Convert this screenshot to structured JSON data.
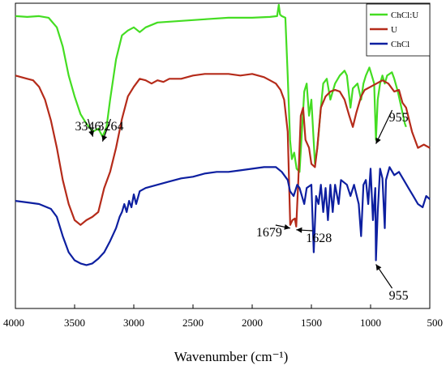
{
  "chart_data": {
    "type": "line",
    "xlabel": "Wavenumber (cm⁻¹)",
    "xlim": [
      4000,
      500
    ],
    "x_ticks": [
      4000,
      3500,
      3000,
      2500,
      2000,
      1500,
      1000,
      500
    ],
    "yticks_shown": false,
    "legend": {
      "position": "top-right",
      "entries": [
        "ChCl:U",
        "U",
        "ChCl"
      ]
    },
    "series": [
      {
        "name": "ChCl:U",
        "color": "#44dd22",
        "offset": 0.8,
        "points": [
          [
            4000,
            0.97
          ],
          [
            3900,
            0.965
          ],
          [
            3800,
            0.97
          ],
          [
            3720,
            0.96
          ],
          [
            3650,
            0.9
          ],
          [
            3600,
            0.78
          ],
          [
            3550,
            0.6
          ],
          [
            3500,
            0.47
          ],
          [
            3450,
            0.36
          ],
          [
            3400,
            0.3
          ],
          [
            3346,
            0.25
          ],
          [
            3300,
            0.27
          ],
          [
            3264,
            0.22
          ],
          [
            3230,
            0.28
          ],
          [
            3200,
            0.45
          ],
          [
            3150,
            0.7
          ],
          [
            3100,
            0.85
          ],
          [
            3050,
            0.88
          ],
          [
            3000,
            0.9
          ],
          [
            2950,
            0.87
          ],
          [
            2900,
            0.9
          ],
          [
            2800,
            0.93
          ],
          [
            2600,
            0.94
          ],
          [
            2400,
            0.95
          ],
          [
            2200,
            0.96
          ],
          [
            2000,
            0.96
          ],
          [
            1850,
            0.965
          ],
          [
            1790,
            0.97
          ],
          [
            1775,
            1.04
          ],
          [
            1765,
            0.98
          ],
          [
            1750,
            0.97
          ],
          [
            1720,
            0.96
          ],
          [
            1700,
            0.6
          ],
          [
            1680,
            0.2
          ],
          [
            1665,
            0.08
          ],
          [
            1645,
            0.12
          ],
          [
            1625,
            0.02
          ],
          [
            1600,
            0.0
          ],
          [
            1580,
            0.25
          ],
          [
            1560,
            0.5
          ],
          [
            1540,
            0.55
          ],
          [
            1520,
            0.35
          ],
          [
            1500,
            0.45
          ],
          [
            1470,
            0.05
          ],
          [
            1450,
            0.15
          ],
          [
            1420,
            0.4
          ],
          [
            1400,
            0.55
          ],
          [
            1370,
            0.58
          ],
          [
            1340,
            0.45
          ],
          [
            1300,
            0.55
          ],
          [
            1260,
            0.6
          ],
          [
            1220,
            0.63
          ],
          [
            1200,
            0.6
          ],
          [
            1170,
            0.4
          ],
          [
            1150,
            0.52
          ],
          [
            1110,
            0.55
          ],
          [
            1080,
            0.45
          ],
          [
            1060,
            0.55
          ],
          [
            1040,
            0.6
          ],
          [
            1010,
            0.65
          ],
          [
            990,
            0.6
          ],
          [
            970,
            0.55
          ],
          [
            955,
            0.2
          ],
          [
            940,
            0.45
          ],
          [
            920,
            0.55
          ],
          [
            900,
            0.6
          ],
          [
            880,
            0.55
          ],
          [
            860,
            0.6
          ],
          [
            820,
            0.62
          ],
          [
            800,
            0.58
          ],
          [
            770,
            0.5
          ],
          [
            740,
            0.4
          ],
          [
            710,
            0.3
          ],
          [
            700,
            0.28
          ]
        ]
      },
      {
        "name": "U",
        "color": "#b52b1a",
        "offset": 0.45,
        "points": [
          [
            4000,
            0.95
          ],
          [
            3900,
            0.93
          ],
          [
            3850,
            0.92
          ],
          [
            3800,
            0.88
          ],
          [
            3750,
            0.8
          ],
          [
            3700,
            0.67
          ],
          [
            3650,
            0.5
          ],
          [
            3600,
            0.3
          ],
          [
            3550,
            0.15
          ],
          [
            3500,
            0.05
          ],
          [
            3450,
            0.02
          ],
          [
            3400,
            0.05
          ],
          [
            3350,
            0.07
          ],
          [
            3300,
            0.1
          ],
          [
            3250,
            0.25
          ],
          [
            3200,
            0.35
          ],
          [
            3150,
            0.5
          ],
          [
            3100,
            0.68
          ],
          [
            3050,
            0.82
          ],
          [
            3000,
            0.88
          ],
          [
            2950,
            0.93
          ],
          [
            2900,
            0.92
          ],
          [
            2850,
            0.9
          ],
          [
            2800,
            0.92
          ],
          [
            2750,
            0.91
          ],
          [
            2700,
            0.93
          ],
          [
            2600,
            0.93
          ],
          [
            2500,
            0.95
          ],
          [
            2400,
            0.96
          ],
          [
            2300,
            0.96
          ],
          [
            2200,
            0.96
          ],
          [
            2100,
            0.95
          ],
          [
            2000,
            0.96
          ],
          [
            1950,
            0.95
          ],
          [
            1900,
            0.94
          ],
          [
            1850,
            0.92
          ],
          [
            1800,
            0.9
          ],
          [
            1760,
            0.86
          ],
          [
            1730,
            0.8
          ],
          [
            1700,
            0.6
          ],
          [
            1679,
            0.02
          ],
          [
            1660,
            0.05
          ],
          [
            1640,
            0.06
          ],
          [
            1628,
            0.01
          ],
          [
            1610,
            0.3
          ],
          [
            1590,
            0.7
          ],
          [
            1570,
            0.75
          ],
          [
            1550,
            0.55
          ],
          [
            1520,
            0.5
          ],
          [
            1500,
            0.4
          ],
          [
            1470,
            0.38
          ],
          [
            1450,
            0.5
          ],
          [
            1420,
            0.75
          ],
          [
            1380,
            0.82
          ],
          [
            1340,
            0.85
          ],
          [
            1300,
            0.86
          ],
          [
            1260,
            0.85
          ],
          [
            1220,
            0.8
          ],
          [
            1180,
            0.7
          ],
          [
            1150,
            0.63
          ],
          [
            1120,
            0.72
          ],
          [
            1080,
            0.82
          ],
          [
            1050,
            0.86
          ],
          [
            1000,
            0.88
          ],
          [
            950,
            0.9
          ],
          [
            900,
            0.92
          ],
          [
            850,
            0.9
          ],
          [
            800,
            0.85
          ],
          [
            760,
            0.86
          ],
          [
            730,
            0.78
          ],
          [
            700,
            0.75
          ],
          [
            650,
            0.6
          ],
          [
            600,
            0.5
          ],
          [
            550,
            0.52
          ],
          [
            500,
            0.5
          ]
        ]
      },
      {
        "name": "ChCl",
        "color": "#0d1fa0",
        "offset": 0.0,
        "points": [
          [
            4000,
            0.62
          ],
          [
            3900,
            0.61
          ],
          [
            3800,
            0.6
          ],
          [
            3700,
            0.57
          ],
          [
            3650,
            0.52
          ],
          [
            3600,
            0.4
          ],
          [
            3550,
            0.3
          ],
          [
            3500,
            0.25
          ],
          [
            3450,
            0.23
          ],
          [
            3400,
            0.22
          ],
          [
            3350,
            0.23
          ],
          [
            3300,
            0.26
          ],
          [
            3250,
            0.3
          ],
          [
            3200,
            0.37
          ],
          [
            3150,
            0.45
          ],
          [
            3120,
            0.52
          ],
          [
            3100,
            0.55
          ],
          [
            3080,
            0.6
          ],
          [
            3060,
            0.55
          ],
          [
            3040,
            0.62
          ],
          [
            3020,
            0.58
          ],
          [
            3000,
            0.66
          ],
          [
            2980,
            0.6
          ],
          [
            2950,
            0.68
          ],
          [
            2900,
            0.7
          ],
          [
            2800,
            0.72
          ],
          [
            2700,
            0.74
          ],
          [
            2600,
            0.76
          ],
          [
            2500,
            0.77
          ],
          [
            2400,
            0.79
          ],
          [
            2300,
            0.8
          ],
          [
            2200,
            0.8
          ],
          [
            2100,
            0.81
          ],
          [
            2000,
            0.82
          ],
          [
            1900,
            0.83
          ],
          [
            1800,
            0.83
          ],
          [
            1750,
            0.8
          ],
          [
            1700,
            0.75
          ],
          [
            1680,
            0.68
          ],
          [
            1650,
            0.65
          ],
          [
            1620,
            0.72
          ],
          [
            1600,
            0.7
          ],
          [
            1560,
            0.6
          ],
          [
            1540,
            0.7
          ],
          [
            1500,
            0.72
          ],
          [
            1480,
            0.3
          ],
          [
            1460,
            0.65
          ],
          [
            1440,
            0.6
          ],
          [
            1420,
            0.72
          ],
          [
            1400,
            0.55
          ],
          [
            1380,
            0.7
          ],
          [
            1360,
            0.5
          ],
          [
            1340,
            0.72
          ],
          [
            1320,
            0.55
          ],
          [
            1300,
            0.72
          ],
          [
            1270,
            0.6
          ],
          [
            1250,
            0.75
          ],
          [
            1200,
            0.72
          ],
          [
            1170,
            0.65
          ],
          [
            1140,
            0.72
          ],
          [
            1100,
            0.6
          ],
          [
            1080,
            0.4
          ],
          [
            1060,
            0.72
          ],
          [
            1040,
            0.75
          ],
          [
            1020,
            0.6
          ],
          [
            1000,
            0.82
          ],
          [
            980,
            0.5
          ],
          [
            960,
            0.7
          ],
          [
            955,
            0.25
          ],
          [
            940,
            0.55
          ],
          [
            920,
            0.82
          ],
          [
            900,
            0.76
          ],
          [
            880,
            0.45
          ],
          [
            870,
            0.75
          ],
          [
            840,
            0.83
          ],
          [
            800,
            0.78
          ],
          [
            760,
            0.8
          ],
          [
            720,
            0.75
          ],
          [
            680,
            0.7
          ],
          [
            640,
            0.65
          ],
          [
            600,
            0.6
          ],
          [
            560,
            0.58
          ],
          [
            530,
            0.65
          ],
          [
            500,
            0.63
          ]
        ]
      }
    ],
    "annotations": [
      {
        "text": "3346",
        "series": "ChCl:U",
        "x": 3346
      },
      {
        "text": "3264",
        "series": "ChCl:U",
        "x": 3264
      },
      {
        "text": "955",
        "series": "ChCl:U",
        "x": 955
      },
      {
        "text": "1679",
        "series": "U",
        "x": 1679
      },
      {
        "text": "1628",
        "series": "U",
        "x": 1628
      },
      {
        "text": "955",
        "series": "ChCl",
        "x": 955
      }
    ]
  }
}
